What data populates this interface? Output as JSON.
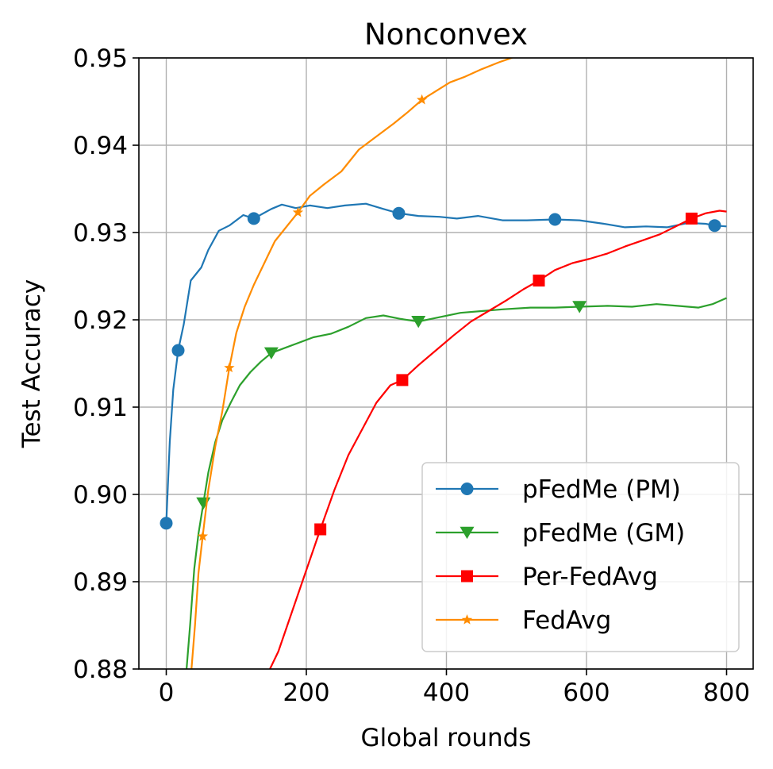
{
  "chart_data": {
    "type": "line",
    "title": "Nonconvex",
    "xlabel": "Global rounds",
    "ylabel": "Test Accuracy",
    "xlim": [
      -40,
      810
    ],
    "ylim": [
      0.88,
      0.95
    ],
    "xticks": [
      "0",
      "200",
      "400",
      "600",
      "800"
    ],
    "yticks": [
      "0.88",
      "0.89",
      "0.90",
      "0.91",
      "0.92",
      "0.93",
      "0.94",
      "0.95"
    ],
    "grid": true,
    "legend_position": "lower-right",
    "series": [
      {
        "name": "pFedMe (PM)",
        "color": "#1f77b4",
        "marker": "circle",
        "points": [
          [
            0,
            0.8967
          ],
          [
            5,
            0.906
          ],
          [
            10,
            0.912
          ],
          [
            17,
            0.9165
          ],
          [
            25,
            0.9195
          ],
          [
            35,
            0.9245
          ],
          [
            50,
            0.926
          ],
          [
            60,
            0.928
          ],
          [
            75,
            0.9302
          ],
          [
            90,
            0.9308
          ],
          [
            110,
            0.932
          ],
          [
            125,
            0.9316
          ],
          [
            150,
            0.9327
          ],
          [
            165,
            0.9332
          ],
          [
            185,
            0.9328
          ],
          [
            205,
            0.9331
          ],
          [
            230,
            0.9328
          ],
          [
            255,
            0.9331
          ],
          [
            285,
            0.9333
          ],
          [
            310,
            0.9327
          ],
          [
            332,
            0.9322
          ],
          [
            360,
            0.9319
          ],
          [
            390,
            0.9318
          ],
          [
            415,
            0.9316
          ],
          [
            445,
            0.9319
          ],
          [
            480,
            0.9314
          ],
          [
            515,
            0.9314
          ],
          [
            555,
            0.9315
          ],
          [
            590,
            0.9314
          ],
          [
            625,
            0.931
          ],
          [
            655,
            0.9306
          ],
          [
            685,
            0.9307
          ],
          [
            715,
            0.9306
          ],
          [
            745,
            0.9311
          ],
          [
            770,
            0.931
          ],
          [
            783,
            0.9308
          ],
          [
            800,
            0.9307
          ]
        ],
        "markers": [
          [
            0,
            0.8967
          ],
          [
            17,
            0.9165
          ],
          [
            125,
            0.9316
          ],
          [
            332,
            0.9322
          ],
          [
            555,
            0.9315
          ],
          [
            783,
            0.9308
          ]
        ]
      },
      {
        "name": "pFedMe (GM)",
        "color": "#2ca02c",
        "marker": "triangle-down",
        "points": [
          [
            29,
            0.88
          ],
          [
            34,
            0.885
          ],
          [
            40,
            0.8915
          ],
          [
            46,
            0.8955
          ],
          [
            53,
            0.899
          ],
          [
            60,
            0.9025
          ],
          [
            70,
            0.906
          ],
          [
            80,
            0.9085
          ],
          [
            92,
            0.9105
          ],
          [
            105,
            0.9125
          ],
          [
            120,
            0.914
          ],
          [
            135,
            0.9152
          ],
          [
            150,
            0.9162
          ],
          [
            170,
            0.9168
          ],
          [
            190,
            0.9174
          ],
          [
            210,
            0.918
          ],
          [
            235,
            0.9184
          ],
          [
            260,
            0.9192
          ],
          [
            285,
            0.9202
          ],
          [
            310,
            0.9205
          ],
          [
            335,
            0.9201
          ],
          [
            360,
            0.9198
          ],
          [
            390,
            0.9203
          ],
          [
            420,
            0.9208
          ],
          [
            450,
            0.921
          ],
          [
            480,
            0.9212
          ],
          [
            520,
            0.9214
          ],
          [
            555,
            0.9214
          ],
          [
            590,
            0.9215
          ],
          [
            630,
            0.9216
          ],
          [
            665,
            0.9215
          ],
          [
            700,
            0.9218
          ],
          [
            730,
            0.9216
          ],
          [
            760,
            0.9214
          ],
          [
            780,
            0.9218
          ],
          [
            800,
            0.9225
          ]
        ],
        "markers": [
          [
            53,
            0.899
          ],
          [
            150,
            0.9162
          ],
          [
            360,
            0.9198
          ],
          [
            590,
            0.9215
          ]
        ]
      },
      {
        "name": "Per-FedAvg",
        "color": "#ff0000",
        "marker": "square",
        "points": [
          [
            148,
            0.88
          ],
          [
            160,
            0.882
          ],
          [
            175,
            0.8855
          ],
          [
            190,
            0.889
          ],
          [
            205,
            0.8925
          ],
          [
            220,
            0.896
          ],
          [
            240,
            0.9005
          ],
          [
            260,
            0.9045
          ],
          [
            280,
            0.9075
          ],
          [
            300,
            0.9105
          ],
          [
            320,
            0.9125
          ],
          [
            337,
            0.9131
          ],
          [
            360,
            0.9148
          ],
          [
            385,
            0.9165
          ],
          [
            410,
            0.9182
          ],
          [
            435,
            0.9198
          ],
          [
            460,
            0.921
          ],
          [
            485,
            0.9222
          ],
          [
            510,
            0.9235
          ],
          [
            532,
            0.9245
          ],
          [
            555,
            0.9257
          ],
          [
            580,
            0.9265
          ],
          [
            605,
            0.927
          ],
          [
            630,
            0.9276
          ],
          [
            655,
            0.9284
          ],
          [
            680,
            0.9291
          ],
          [
            705,
            0.9298
          ],
          [
            725,
            0.9306
          ],
          [
            750,
            0.9316
          ],
          [
            770,
            0.9322
          ],
          [
            790,
            0.9325
          ],
          [
            800,
            0.9324
          ]
        ],
        "markers": [
          [
            220,
            0.896
          ],
          [
            337,
            0.9131
          ],
          [
            532,
            0.9245
          ],
          [
            750,
            0.9316
          ]
        ]
      },
      {
        "name": "FedAvg",
        "color": "#ff8c00",
        "marker": "star",
        "points": [
          [
            36,
            0.88
          ],
          [
            41,
            0.885
          ],
          [
            46,
            0.891
          ],
          [
            52,
            0.8952
          ],
          [
            60,
            0.9005
          ],
          [
            70,
            0.9055
          ],
          [
            80,
            0.9095
          ],
          [
            90,
            0.9145
          ],
          [
            100,
            0.9185
          ],
          [
            112,
            0.9215
          ],
          [
            125,
            0.924
          ],
          [
            140,
            0.9265
          ],
          [
            155,
            0.929
          ],
          [
            170,
            0.9305
          ],
          [
            188,
            0.9323
          ],
          [
            205,
            0.9342
          ],
          [
            225,
            0.9355
          ],
          [
            250,
            0.937
          ],
          [
            275,
            0.9395
          ],
          [
            300,
            0.941
          ],
          [
            325,
            0.9425
          ],
          [
            345,
            0.9438
          ],
          [
            365,
            0.9452
          ],
          [
            385,
            0.9462
          ],
          [
            405,
            0.9472
          ],
          [
            425,
            0.9478
          ],
          [
            450,
            0.9487
          ],
          [
            475,
            0.9495
          ],
          [
            500,
            0.9502
          ]
        ],
        "markers": [
          [
            52,
            0.8952
          ],
          [
            90,
            0.9145
          ],
          [
            188,
            0.9323
          ],
          [
            365,
            0.9452
          ]
        ]
      }
    ]
  }
}
